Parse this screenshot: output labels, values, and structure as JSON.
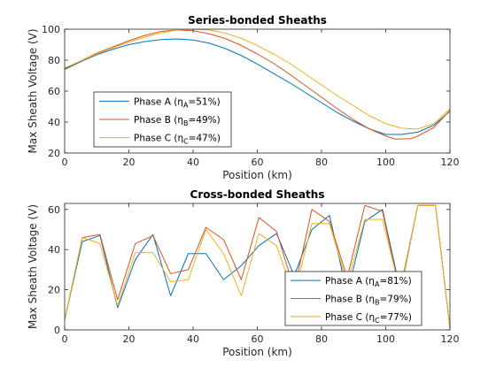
{
  "chart_data": [
    {
      "type": "line",
      "title": "Series-bonded Sheaths",
      "xlabel": "Position (km)",
      "ylabel": "Max Sheath Voltage (V)",
      "xlim": [
        0,
        120
      ],
      "ylim": [
        20,
        100
      ],
      "xticks": [
        0,
        20,
        40,
        60,
        80,
        100,
        120
      ],
      "yticks": [
        20,
        40,
        60,
        80,
        100
      ],
      "grid": false,
      "legend_position": "bottom-left",
      "series": [
        {
          "name": "Phase A (ηA=51%)",
          "legend": {
            "prefix": "Phase A (",
            "eta": "η",
            "sub": "A",
            "suffix": "=51%)"
          },
          "color": "#0072BD",
          "x": [
            0,
            5,
            10,
            15,
            20,
            25,
            30,
            35,
            40,
            45,
            50,
            55,
            60,
            65,
            70,
            75,
            80,
            85,
            90,
            95,
            100,
            105,
            110,
            115,
            120
          ],
          "y": [
            74,
            79,
            83.5,
            87,
            90,
            92,
            93.3,
            93.7,
            93,
            91,
            87.5,
            83,
            77.5,
            71.5,
            65.5,
            59,
            52.5,
            46,
            40.5,
            35.5,
            32,
            32,
            33.5,
            38,
            47
          ]
        },
        {
          "name": "Phase B (ηB=49%)",
          "legend": {
            "prefix": "Phase B (",
            "eta": "η",
            "sub": "B",
            "suffix": "=49%)"
          },
          "color": "#D95319",
          "x": [
            0,
            5,
            10,
            15,
            20,
            25,
            30,
            35,
            40,
            45,
            50,
            55,
            60,
            65,
            70,
            75,
            80,
            85,
            90,
            95,
            100,
            103,
            108,
            110,
            115,
            120
          ],
          "y": [
            74.5,
            79.5,
            84.5,
            88.5,
            92.5,
            96,
            98.5,
            99.5,
            99,
            97,
            94,
            89.5,
            84,
            78,
            71,
            63.5,
            56,
            48.5,
            41.5,
            35.5,
            31,
            29,
            29.3,
            31,
            36.5,
            47.5
          ]
        },
        {
          "name": "Phase C (ηC=47%)",
          "legend": {
            "prefix": "Phase C (",
            "eta": "η",
            "sub": "C",
            "suffix": "=47%)"
          },
          "color": "#EDB120",
          "x": [
            0,
            5,
            10,
            15,
            20,
            25,
            30,
            35,
            40,
            45,
            50,
            55,
            60,
            65,
            70,
            75,
            80,
            85,
            90,
            95,
            100,
            105,
            110,
            115,
            120
          ],
          "y": [
            75,
            79.5,
            84,
            88,
            91.5,
            95,
            97.5,
            99.5,
            100,
            99.5,
            97.5,
            94,
            89.5,
            84,
            78,
            71,
            64,
            57,
            50.5,
            44,
            39,
            36,
            35.5,
            39,
            48.5
          ]
        }
      ]
    },
    {
      "type": "line",
      "title": "Cross-bonded Sheaths",
      "xlabel": "Position (km)",
      "ylabel": "Max Sheath Voltage (V)",
      "xlim": [
        0,
        120
      ],
      "ylim": [
        0,
        63
      ],
      "xticks": [
        0,
        20,
        40,
        60,
        80,
        100,
        120
      ],
      "yticks": [
        0,
        20,
        40,
        60
      ],
      "grid": false,
      "legend_position": "bottom-right",
      "series": [
        {
          "name": "Phase A (ηA=81%)",
          "legend": {
            "prefix": "Phase A (",
            "eta": "η",
            "sub": "A",
            "suffix": "=81%)"
          },
          "color": "#0072BD",
          "x": [
            0,
            5.5,
            11,
            16.5,
            22,
            27.5,
            33,
            38.5,
            44,
            49.5,
            55,
            60.5,
            66,
            71.5,
            77,
            82.5,
            88,
            93.5,
            99,
            104.5,
            110,
            115.5,
            120
          ],
          "y": [
            5,
            44,
            47,
            11,
            35,
            47.5,
            17,
            38,
            38,
            25,
            32,
            42,
            48,
            27,
            50,
            57,
            18,
            54,
            60,
            20,
            62,
            62,
            1
          ]
        },
        {
          "name": "Phase B (ηB=79%)",
          "legend": {
            "prefix": "Phase B (",
            "eta": "η",
            "sub": "B",
            "suffix": "=79%)"
          },
          "color": "#D95319",
          "x": [
            0,
            5.5,
            11,
            16.5,
            22,
            27.5,
            33,
            38.5,
            44,
            49.5,
            55,
            60.5,
            66,
            71.5,
            77,
            82.5,
            88,
            93.5,
            99,
            104.5,
            110,
            115.5,
            120
          ],
          "y": [
            5,
            46,
            47.5,
            15,
            43,
            47,
            28,
            30,
            51,
            45,
            25,
            56,
            49,
            20,
            60,
            54,
            26,
            62,
            59,
            18,
            62,
            62,
            1
          ]
        },
        {
          "name": "Phase C (ηC=77%)",
          "legend": {
            "prefix": "Phase C (",
            "eta": "η",
            "sub": "C",
            "suffix": "=77%)"
          },
          "color": "#EDB120",
          "x": [
            0,
            5.5,
            11,
            16.5,
            22,
            27.5,
            33,
            38.5,
            44,
            49.5,
            55,
            60.5,
            66,
            71.5,
            77,
            82.5,
            88,
            93.5,
            99,
            104.5,
            110,
            115.5,
            120
          ],
          "y": [
            5,
            46,
            43,
            12,
            38.5,
            38.5,
            24,
            25,
            50,
            38,
            17,
            48,
            42,
            17,
            53,
            53,
            23,
            55,
            55,
            19,
            62,
            62,
            1
          ]
        }
      ]
    }
  ]
}
